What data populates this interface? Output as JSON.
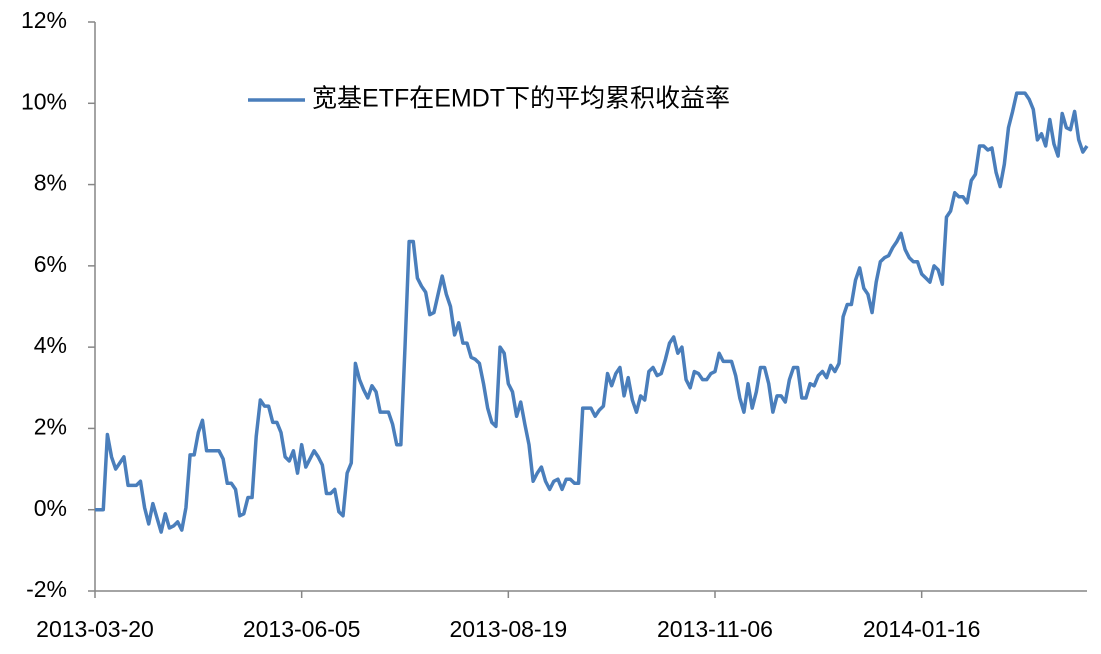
{
  "chart_data": {
    "type": "line",
    "categories": [
      "2013-03-20",
      null,
      null,
      null,
      null,
      null,
      null,
      null,
      null,
      null,
      null,
      null,
      null,
      null,
      null,
      null,
      null,
      null,
      null,
      null,
      null,
      null,
      null,
      null,
      null,
      null,
      null,
      null,
      null,
      null,
      null,
      null,
      null,
      null,
      null,
      null,
      null,
      null,
      null,
      null,
      null,
      null,
      null,
      null,
      null,
      null,
      null,
      null,
      null,
      null,
      "2013-06-05",
      null,
      null,
      null,
      null,
      null,
      null,
      null,
      null,
      null,
      null,
      null,
      null,
      null,
      null,
      null,
      null,
      null,
      null,
      null,
      null,
      null,
      null,
      null,
      null,
      null,
      null,
      null,
      null,
      null,
      null,
      null,
      null,
      null,
      null,
      null,
      null,
      null,
      null,
      null,
      null,
      null,
      null,
      null,
      null,
      null,
      null,
      null,
      null,
      null,
      "2013-08-19",
      null,
      null,
      null,
      null,
      null,
      null,
      null,
      null,
      null,
      null,
      null,
      null,
      null,
      null,
      null,
      null,
      null,
      null,
      null,
      null,
      null,
      null,
      null,
      null,
      null,
      null,
      null,
      null,
      null,
      null,
      null,
      null,
      null,
      null,
      null,
      null,
      null,
      null,
      null,
      null,
      null,
      null,
      null,
      null,
      null,
      null,
      null,
      null,
      null,
      "2013-11-06",
      null,
      null,
      null,
      null,
      null,
      null,
      null,
      null,
      null,
      null,
      null,
      null,
      null,
      null,
      null,
      null,
      null,
      null,
      null,
      null,
      null,
      null,
      null,
      null,
      null,
      null,
      null,
      null,
      null,
      null,
      null,
      null,
      null,
      null,
      null,
      null,
      null,
      null,
      null,
      null,
      null,
      null,
      null,
      null,
      null,
      null,
      null,
      null,
      null,
      "2014-01-16",
      null,
      null,
      null,
      null,
      null,
      null,
      null,
      null,
      null,
      null,
      null,
      null,
      null,
      null,
      null,
      null,
      null,
      null,
      null,
      null,
      null,
      null,
      null,
      null,
      null,
      null,
      null,
      null,
      null,
      null,
      null,
      null,
      null,
      null,
      null,
      null,
      null,
      null,
      null,
      null
    ],
    "series": [
      {
        "name": "宽基ETF在EMDT下的平均累积收益率",
        "color": "#4a7ebb",
        "values": [
          0,
          0,
          0,
          1.85,
          1.3,
          1.0,
          1.15,
          1.3,
          0.6,
          0.6,
          0.6,
          0.7,
          0.05,
          -0.35,
          0.15,
          -0.2,
          -0.55,
          -0.1,
          -0.45,
          -0.4,
          -0.3,
          -0.5,
          0.05,
          1.35,
          1.35,
          1.9,
          2.2,
          1.45,
          1.45,
          1.45,
          1.45,
          1.25,
          0.65,
          0.65,
          0.5,
          -0.15,
          -0.1,
          0.3,
          0.3,
          1.8,
          2.7,
          2.55,
          2.55,
          2.15,
          2.15,
          1.9,
          1.3,
          1.2,
          1.45,
          0.9,
          1.6,
          1.05,
          1.25,
          1.45,
          1.3,
          1.1,
          0.4,
          0.4,
          0.5,
          -0.05,
          -0.15,
          0.9,
          1.15,
          3.6,
          3.2,
          2.95,
          2.75,
          3.05,
          2.9,
          2.4,
          2.4,
          2.4,
          2.1,
          1.6,
          1.6,
          4.0,
          6.6,
          6.6,
          5.7,
          5.5,
          5.35,
          4.8,
          4.85,
          5.3,
          5.75,
          5.3,
          5.0,
          4.3,
          4.6,
          4.1,
          4.1,
          3.75,
          3.7,
          3.6,
          3.1,
          2.5,
          2.15,
          2.05,
          4.0,
          3.85,
          3.1,
          2.9,
          2.3,
          2.65,
          2.1,
          1.6,
          0.7,
          0.9,
          1.05,
          0.7,
          0.5,
          0.7,
          0.75,
          0.5,
          0.75,
          0.75,
          0.65,
          0.65,
          2.5,
          2.5,
          2.5,
          2.3,
          2.45,
          2.55,
          3.35,
          3.05,
          3.35,
          3.5,
          2.8,
          3.25,
          2.7,
          2.4,
          2.8,
          2.7,
          3.4,
          3.5,
          3.3,
          3.35,
          3.7,
          4.1,
          4.25,
          3.85,
          4.0,
          3.2,
          3.0,
          3.4,
          3.35,
          3.2,
          3.2,
          3.35,
          3.4,
          3.85,
          3.65,
          3.65,
          3.65,
          3.3,
          2.75,
          2.4,
          3.1,
          2.5,
          2.9,
          3.5,
          3.5,
          3.1,
          2.4,
          2.8,
          2.8,
          2.65,
          3.2,
          3.5,
          3.5,
          2.75,
          2.75,
          3.1,
          3.05,
          3.3,
          3.4,
          3.25,
          3.55,
          3.4,
          3.6,
          4.75,
          5.05,
          5.05,
          5.65,
          5.95,
          5.45,
          5.3,
          4.85,
          5.6,
          6.1,
          6.2,
          6.25,
          6.45,
          6.6,
          6.8,
          6.4,
          6.2,
          6.1,
          6.1,
          5.8,
          5.7,
          5.6,
          6.0,
          5.9,
          5.55,
          7.2,
          7.35,
          7.8,
          7.7,
          7.7,
          7.55,
          8.1,
          8.25,
          8.95,
          8.95,
          8.85,
          8.9,
          8.3,
          7.95,
          8.5,
          9.4,
          9.8,
          10.25,
          10.25,
          10.25,
          10.1,
          9.85,
          9.1,
          9.25,
          8.95,
          9.6,
          9.0,
          8.7,
          9.75,
          9.4,
          9.35,
          9.8,
          9.1,
          8.8,
          8.95
        ]
      }
    ],
    "ylim": [
      -2,
      12
    ],
    "yticks": [
      {
        "value": -2,
        "label": "-2%"
      },
      {
        "value": 0,
        "label": "0%"
      },
      {
        "value": 2,
        "label": "2%"
      },
      {
        "value": 4,
        "label": "4%"
      },
      {
        "value": 6,
        "label": "6%"
      },
      {
        "value": 8,
        "label": "8%"
      },
      {
        "value": 10,
        "label": "10%"
      },
      {
        "value": 12,
        "label": "12%"
      }
    ],
    "grid": false
  }
}
